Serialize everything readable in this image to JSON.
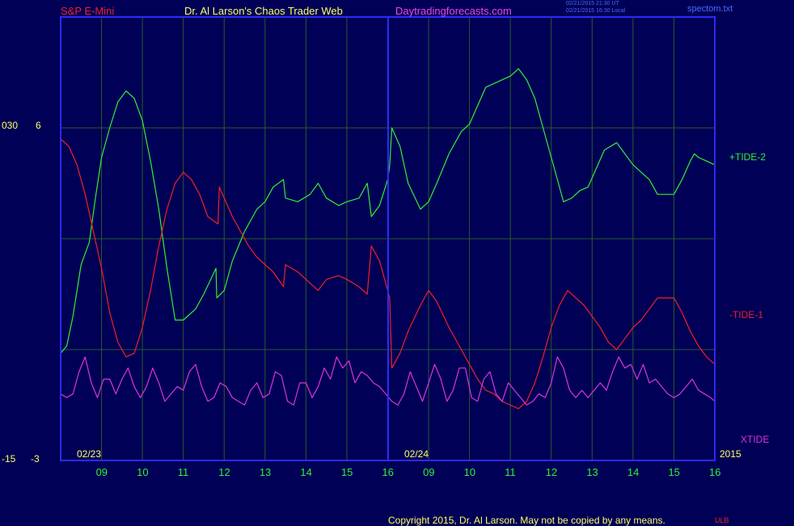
{
  "header": {
    "instrument": "S&P E-Mini",
    "author": "Dr. Al Larson's Chaos Trader Web",
    "site": "Daytradingforecasts.com",
    "stamp_line1": "02/21/2015 21:30 UT",
    "stamp_line2": "02/21/2015 16:30 Local",
    "file": "spectom.txt"
  },
  "footer": {
    "copyright": "Copyright 2015, Dr. Al Larson. May not be copied by any means.",
    "mark": "ULB"
  },
  "colors": {
    "background": "#000056",
    "frame": "#2a2aff",
    "grid": "#2a5a2a",
    "tide_plus": "#33ee33",
    "tide_minus": "#ee2222",
    "xtide": "#dd33dd",
    "axis_text": "#ffff66",
    "hour_text": "#33ee33"
  },
  "chart_data": {
    "type": "line",
    "y_labels_left": [
      {
        "outer": "030",
        "inner": "6"
      },
      {
        "outer": "-15",
        "inner": "-3"
      }
    ],
    "date_labels": [
      "02/23",
      "02/24"
    ],
    "year_label": "2015",
    "x_ticks": [
      "09",
      "10",
      "11",
      "12",
      "13",
      "14",
      "15",
      "16",
      "09",
      "10",
      "11",
      "12",
      "13",
      "14",
      "15",
      "16"
    ],
    "legend": [
      {
        "name": "+TIDE-2",
        "color": "#33ee33"
      },
      {
        "name": "-TIDE-1",
        "color": "#ee2222"
      },
      {
        "name": "XTIDE",
        "color": "#dd33dd"
      }
    ],
    "x_range": [
      8.0,
      24.0
    ],
    "y_range": [
      -3,
      9
    ],
    "series": [
      {
        "name": "+TIDE-2",
        "points": [
          [
            8.0,
            -0.1
          ],
          [
            8.15,
            0.1
          ],
          [
            8.3,
            0.9
          ],
          [
            8.5,
            2.3
          ],
          [
            8.6,
            2.6
          ],
          [
            8.7,
            2.9
          ],
          [
            8.85,
            4.1
          ],
          [
            9.0,
            5.2
          ],
          [
            9.2,
            6.0
          ],
          [
            9.4,
            6.7
          ],
          [
            9.6,
            7.0
          ],
          [
            9.8,
            6.8
          ],
          [
            10.0,
            6.2
          ],
          [
            10.2,
            5.1
          ],
          [
            10.4,
            3.8
          ],
          [
            10.6,
            2.2
          ],
          [
            10.8,
            0.8
          ],
          [
            11.0,
            0.8
          ],
          [
            11.3,
            1.1
          ],
          [
            11.5,
            1.5
          ],
          [
            11.8,
            2.2
          ],
          [
            11.82,
            1.4
          ],
          [
            12.0,
            1.6
          ],
          [
            12.2,
            2.4
          ],
          [
            12.5,
            3.2
          ],
          [
            12.8,
            3.8
          ],
          [
            13.0,
            4.0
          ],
          [
            13.2,
            4.4
          ],
          [
            13.45,
            4.6
          ],
          [
            13.5,
            4.1
          ],
          [
            13.8,
            4.0
          ],
          [
            14.1,
            4.2
          ],
          [
            14.3,
            4.5
          ],
          [
            14.5,
            4.1
          ],
          [
            14.8,
            3.9
          ],
          [
            15.0,
            4.0
          ],
          [
            15.3,
            4.1
          ],
          [
            15.5,
            4.5
          ],
          [
            15.6,
            3.6
          ],
          [
            15.8,
            3.9
          ],
          [
            16.0,
            4.6
          ],
          [
            16.05,
            5.0
          ],
          [
            16.1,
            6.0
          ],
          [
            16.3,
            5.5
          ],
          [
            16.5,
            4.5
          ],
          [
            16.8,
            3.8
          ],
          [
            17.0,
            4.0
          ],
          [
            17.2,
            4.5
          ],
          [
            17.5,
            5.3
          ],
          [
            17.8,
            5.9
          ],
          [
            18.0,
            6.1
          ],
          [
            18.2,
            6.6
          ],
          [
            18.4,
            7.1
          ],
          [
            18.6,
            7.2
          ],
          [
            18.8,
            7.3
          ],
          [
            19.0,
            7.4
          ],
          [
            19.2,
            7.6
          ],
          [
            19.4,
            7.3
          ],
          [
            19.6,
            6.8
          ],
          [
            19.8,
            6.0
          ],
          [
            20.0,
            5.2
          ],
          [
            20.2,
            4.4
          ],
          [
            20.3,
            4.0
          ],
          [
            20.5,
            4.1
          ],
          [
            20.7,
            4.3
          ],
          [
            20.9,
            4.4
          ],
          [
            21.1,
            4.9
          ],
          [
            21.3,
            5.4
          ],
          [
            21.6,
            5.6
          ],
          [
            21.8,
            5.3
          ],
          [
            22.0,
            5.0
          ],
          [
            22.2,
            4.8
          ],
          [
            22.4,
            4.6
          ],
          [
            22.6,
            4.2
          ],
          [
            22.8,
            4.2
          ],
          [
            23.0,
            4.2
          ],
          [
            23.2,
            4.6
          ],
          [
            23.4,
            5.1
          ],
          [
            23.5,
            5.3
          ],
          [
            23.6,
            5.2
          ],
          [
            23.8,
            5.1
          ],
          [
            24.0,
            5.0
          ]
        ]
      },
      {
        "name": "-TIDE-1",
        "points": [
          [
            8.0,
            5.7
          ],
          [
            8.2,
            5.5
          ],
          [
            8.4,
            5.0
          ],
          [
            8.6,
            4.2
          ],
          [
            8.8,
            3.2
          ],
          [
            9.0,
            2.2
          ],
          [
            9.2,
            1.0
          ],
          [
            9.4,
            0.2
          ],
          [
            9.6,
            -0.2
          ],
          [
            9.8,
            -0.1
          ],
          [
            10.0,
            0.6
          ],
          [
            10.2,
            1.6
          ],
          [
            10.4,
            2.8
          ],
          [
            10.6,
            3.8
          ],
          [
            10.8,
            4.5
          ],
          [
            11.0,
            4.8
          ],
          [
            11.2,
            4.6
          ],
          [
            11.4,
            4.2
          ],
          [
            11.6,
            3.6
          ],
          [
            11.85,
            3.4
          ],
          [
            11.88,
            4.4
          ],
          [
            12.0,
            4.1
          ],
          [
            12.2,
            3.6
          ],
          [
            12.4,
            3.2
          ],
          [
            12.6,
            2.8
          ],
          [
            12.8,
            2.5
          ],
          [
            13.0,
            2.3
          ],
          [
            13.2,
            2.1
          ],
          [
            13.45,
            1.7
          ],
          [
            13.5,
            2.3
          ],
          [
            13.8,
            2.1
          ],
          [
            14.1,
            1.8
          ],
          [
            14.3,
            1.6
          ],
          [
            14.5,
            1.9
          ],
          [
            14.8,
            2.0
          ],
          [
            15.0,
            1.9
          ],
          [
            15.3,
            1.7
          ],
          [
            15.5,
            1.5
          ],
          [
            15.6,
            2.8
          ],
          [
            15.8,
            2.4
          ],
          [
            16.0,
            1.6
          ],
          [
            16.05,
            1.4
          ],
          [
            16.1,
            -0.5
          ],
          [
            16.3,
            -0.1
          ],
          [
            16.5,
            0.5
          ],
          [
            16.8,
            1.2
          ],
          [
            17.0,
            1.6
          ],
          [
            17.2,
            1.3
          ],
          [
            17.5,
            0.6
          ],
          [
            17.8,
            0.0
          ],
          [
            18.0,
            -0.4
          ],
          [
            18.2,
            -0.8
          ],
          [
            18.4,
            -1.1
          ],
          [
            18.6,
            -1.2
          ],
          [
            18.8,
            -1.4
          ],
          [
            19.0,
            -1.5
          ],
          [
            19.2,
            -1.6
          ],
          [
            19.4,
            -1.4
          ],
          [
            19.6,
            -0.9
          ],
          [
            19.8,
            -0.2
          ],
          [
            20.0,
            0.6
          ],
          [
            20.2,
            1.2
          ],
          [
            20.4,
            1.6
          ],
          [
            20.6,
            1.4
          ],
          [
            20.8,
            1.2
          ],
          [
            21.0,
            0.9
          ],
          [
            21.2,
            0.6
          ],
          [
            21.4,
            0.2
          ],
          [
            21.6,
            0.0
          ],
          [
            21.8,
            0.3
          ],
          [
            22.0,
            0.6
          ],
          [
            22.2,
            0.8
          ],
          [
            22.4,
            1.1
          ],
          [
            22.6,
            1.4
          ],
          [
            22.8,
            1.4
          ],
          [
            23.0,
            1.4
          ],
          [
            23.2,
            1.0
          ],
          [
            23.4,
            0.5
          ],
          [
            23.6,
            0.1
          ],
          [
            23.8,
            -0.2
          ],
          [
            24.0,
            -0.4
          ]
        ]
      },
      {
        "name": "XTIDE",
        "points": [
          [
            8.0,
            -1.2
          ],
          [
            8.15,
            -1.3
          ],
          [
            8.3,
            -1.2
          ],
          [
            8.45,
            -0.6
          ],
          [
            8.6,
            -0.2
          ],
          [
            8.75,
            -0.9
          ],
          [
            8.9,
            -1.3
          ],
          [
            9.05,
            -0.8
          ],
          [
            9.2,
            -0.8
          ],
          [
            9.35,
            -1.2
          ],
          [
            9.5,
            -0.8
          ],
          [
            9.65,
            -0.5
          ],
          [
            9.8,
            -1.0
          ],
          [
            9.95,
            -1.3
          ],
          [
            10.1,
            -1.0
          ],
          [
            10.25,
            -0.5
          ],
          [
            10.4,
            -0.9
          ],
          [
            10.55,
            -1.4
          ],
          [
            10.7,
            -1.2
          ],
          [
            10.85,
            -1.0
          ],
          [
            11.0,
            -1.1
          ],
          [
            11.15,
            -0.6
          ],
          [
            11.3,
            -0.4
          ],
          [
            11.45,
            -1.0
          ],
          [
            11.6,
            -1.4
          ],
          [
            11.75,
            -1.3
          ],
          [
            11.9,
            -0.9
          ],
          [
            12.05,
            -1.0
          ],
          [
            12.2,
            -1.3
          ],
          [
            12.35,
            -1.4
          ],
          [
            12.5,
            -1.5
          ],
          [
            12.65,
            -1.1
          ],
          [
            12.8,
            -0.9
          ],
          [
            12.95,
            -1.3
          ],
          [
            13.1,
            -1.2
          ],
          [
            13.25,
            -0.6
          ],
          [
            13.4,
            -0.7
          ],
          [
            13.55,
            -1.4
          ],
          [
            13.7,
            -1.5
          ],
          [
            13.85,
            -0.9
          ],
          [
            14.0,
            -0.9
          ],
          [
            14.15,
            -1.3
          ],
          [
            14.3,
            -1.0
          ],
          [
            14.45,
            -0.5
          ],
          [
            14.6,
            -0.8
          ],
          [
            14.75,
            -0.2
          ],
          [
            14.9,
            -0.5
          ],
          [
            15.05,
            -0.3
          ],
          [
            15.2,
            -0.9
          ],
          [
            15.35,
            -0.6
          ],
          [
            15.5,
            -0.7
          ],
          [
            15.65,
            -0.9
          ],
          [
            15.8,
            -1.0
          ],
          [
            15.95,
            -1.2
          ],
          [
            16.1,
            -1.4
          ],
          [
            16.25,
            -1.5
          ],
          [
            16.4,
            -1.2
          ],
          [
            16.55,
            -0.6
          ],
          [
            16.7,
            -1.0
          ],
          [
            16.85,
            -1.4
          ],
          [
            17.0,
            -0.9
          ],
          [
            17.15,
            -0.4
          ],
          [
            17.3,
            -0.8
          ],
          [
            17.45,
            -1.4
          ],
          [
            17.6,
            -1.1
          ],
          [
            17.75,
            -0.5
          ],
          [
            17.9,
            -0.5
          ],
          [
            18.05,
            -1.3
          ],
          [
            18.2,
            -1.4
          ],
          [
            18.35,
            -0.8
          ],
          [
            18.5,
            -0.6
          ],
          [
            18.65,
            -1.2
          ],
          [
            18.8,
            -1.4
          ],
          [
            18.95,
            -0.9
          ],
          [
            19.1,
            -1.1
          ],
          [
            19.25,
            -1.3
          ],
          [
            19.4,
            -1.5
          ],
          [
            19.55,
            -1.4
          ],
          [
            19.7,
            -1.2
          ],
          [
            19.85,
            -1.3
          ],
          [
            20.0,
            -0.9
          ],
          [
            20.15,
            -0.2
          ],
          [
            20.3,
            -0.5
          ],
          [
            20.45,
            -1.1
          ],
          [
            20.6,
            -1.3
          ],
          [
            20.75,
            -1.1
          ],
          [
            20.9,
            -1.3
          ],
          [
            21.05,
            -1.1
          ],
          [
            21.2,
            -0.9
          ],
          [
            21.35,
            -1.1
          ],
          [
            21.5,
            -0.6
          ],
          [
            21.65,
            -0.2
          ],
          [
            21.8,
            -0.5
          ],
          [
            21.95,
            -0.4
          ],
          [
            22.1,
            -0.8
          ],
          [
            22.25,
            -0.4
          ],
          [
            22.4,
            -0.9
          ],
          [
            22.55,
            -0.8
          ],
          [
            22.7,
            -1.0
          ],
          [
            22.85,
            -1.2
          ],
          [
            23.0,
            -1.3
          ],
          [
            23.15,
            -1.2
          ],
          [
            23.3,
            -1.0
          ],
          [
            23.45,
            -0.8
          ],
          [
            23.6,
            -1.1
          ],
          [
            23.75,
            -1.2
          ],
          [
            23.9,
            -1.3
          ],
          [
            24.0,
            -1.4
          ]
        ]
      }
    ]
  }
}
